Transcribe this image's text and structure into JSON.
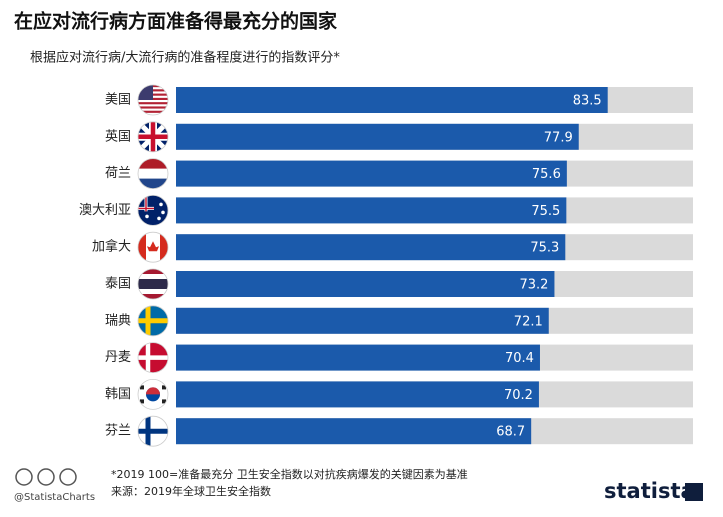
{
  "chart_data": {
    "type": "bar",
    "title": "在应对流行病方面准备得最充分的国家",
    "subtitle": "根据应对流行病/大流行病的准备程度进行的指数评分*",
    "categories": [
      "美国",
      "英国",
      "荷兰",
      "澳大利亚",
      "加拿大",
      "泰国",
      "瑞典",
      "丹麦",
      "韩国",
      "芬兰"
    ],
    "values": [
      83.5,
      77.9,
      75.6,
      75.5,
      75.3,
      73.2,
      72.1,
      70.4,
      70.2,
      68.7
    ],
    "color": "#1b5aab",
    "track_color": "#dadada",
    "xlim": [
      0,
      100
    ],
    "footnote": "*2019 100=准备最充分 卫生安全指数以对抗疾病爆发的关键因素为基准",
    "source": "来源：2019年全球卫生安全指数",
    "credit": "@StatistaCharts",
    "brand": "statista"
  }
}
